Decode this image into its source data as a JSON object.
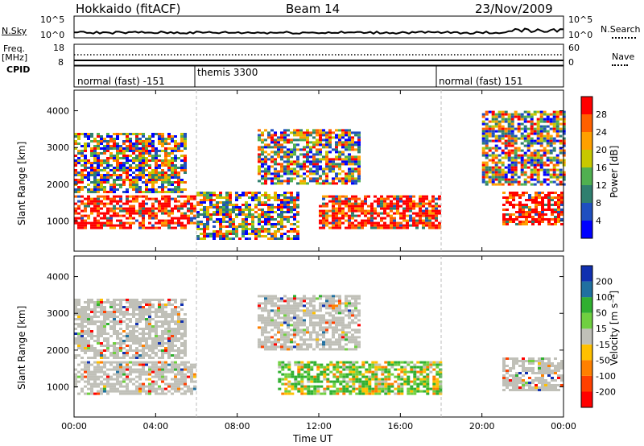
{
  "header": {
    "title": "Hokkaido (fitACF)",
    "beam": "Beam 14",
    "date": "23/Nov/2009"
  },
  "strip": {
    "nsky_label": "N.Sky",
    "nsky_ticks": [
      "10^5",
      "10^0"
    ],
    "nsearch_label": "N.Search",
    "nsearch_ticks": [
      "10^5",
      "10^0"
    ],
    "freq_label": "Freq.",
    "freq_unit": "[MHz]",
    "freq_ticks": [
      "18",
      "8"
    ],
    "nave_label": "Nave",
    "nave_ticks": [
      "60",
      "0"
    ],
    "cpid_label": "CPID",
    "cpid_modes": [
      {
        "name": "normal (fast) -151",
        "start_h": 0,
        "end_h": 6
      },
      {
        "name": "themis 3300",
        "start_h": 6,
        "end_h": 18
      },
      {
        "name": "normal (fast) 151",
        "start_h": 18,
        "end_h": 24
      }
    ]
  },
  "colorbars": {
    "power": {
      "label": "Power [dB]",
      "ticks": [
        "28",
        "24",
        "20",
        "16",
        "12",
        "8",
        "4"
      ],
      "colors": [
        "#0000ff",
        "#1f4fc0",
        "#2f7f6f",
        "#50b050",
        "#c8c800",
        "#ffa000",
        "#ff6000",
        "#ff0000"
      ]
    },
    "velocity": {
      "label": "Velocity [m s⁻¹]",
      "ticks": [
        "200",
        "100",
        "50",
        "15",
        "-15",
        "-50",
        "-100",
        "-200"
      ],
      "colors": [
        "#1030b0",
        "#2070a0",
        "#30b030",
        "#70d040",
        "#c0c0b8",
        "#ffc000",
        "#ff8000",
        "#ff4000",
        "#ff0000"
      ]
    }
  },
  "chart_data": [
    {
      "type": "heatmap",
      "title": "Power",
      "ylabel": "Slant Range [km]",
      "xlabel": "Time UT",
      "x_ticks": [
        "00:00",
        "04:00",
        "08:00",
        "12:00",
        "16:00",
        "20:00",
        "00:00"
      ],
      "y_ticks": [
        1000,
        2000,
        3000,
        4000
      ],
      "xlim_h": [
        0,
        24
      ],
      "ylim_km": [
        180,
        4560
      ],
      "regions": [
        {
          "t": [
            0,
            6
          ],
          "r": [
            800,
            1700
          ],
          "level": "high"
        },
        {
          "t": [
            0,
            5.5
          ],
          "r": [
            1800,
            3400
          ],
          "level": "mixed"
        },
        {
          "t": [
            6,
            11
          ],
          "r": [
            500,
            1800
          ],
          "level": "mixed"
        },
        {
          "t": [
            9,
            14
          ],
          "r": [
            2000,
            3500
          ],
          "level": "mixed"
        },
        {
          "t": [
            12,
            18
          ],
          "r": [
            800,
            1700
          ],
          "level": "high"
        },
        {
          "t": [
            21,
            24
          ],
          "r": [
            900,
            1800
          ],
          "level": "high"
        },
        {
          "t": [
            20,
            24
          ],
          "r": [
            2000,
            4000
          ],
          "level": "mixed"
        }
      ]
    },
    {
      "type": "heatmap",
      "title": "Velocity",
      "ylabel": "Slant Range [km]",
      "xlabel": "Time UT",
      "x_ticks": [
        "00:00",
        "04:00",
        "08:00",
        "12:00",
        "16:00",
        "20:00",
        "00:00"
      ],
      "y_ticks": [
        1000,
        2000,
        3000,
        4000
      ],
      "xlim_h": [
        0,
        24
      ],
      "ylim_km": [
        180,
        4560
      ],
      "regions": [
        {
          "t": [
            0,
            6
          ],
          "r": [
            800,
            1700
          ],
          "level": "ground"
        },
        {
          "t": [
            0,
            5.5
          ],
          "r": [
            1800,
            3400
          ],
          "level": "ground"
        },
        {
          "t": [
            10,
            18
          ],
          "r": [
            800,
            1700
          ],
          "level": "positive"
        },
        {
          "t": [
            9,
            14
          ],
          "r": [
            2000,
            3500
          ],
          "level": "ground"
        },
        {
          "t": [
            21,
            24
          ],
          "r": [
            900,
            1800
          ],
          "level": "ground"
        }
      ]
    }
  ]
}
